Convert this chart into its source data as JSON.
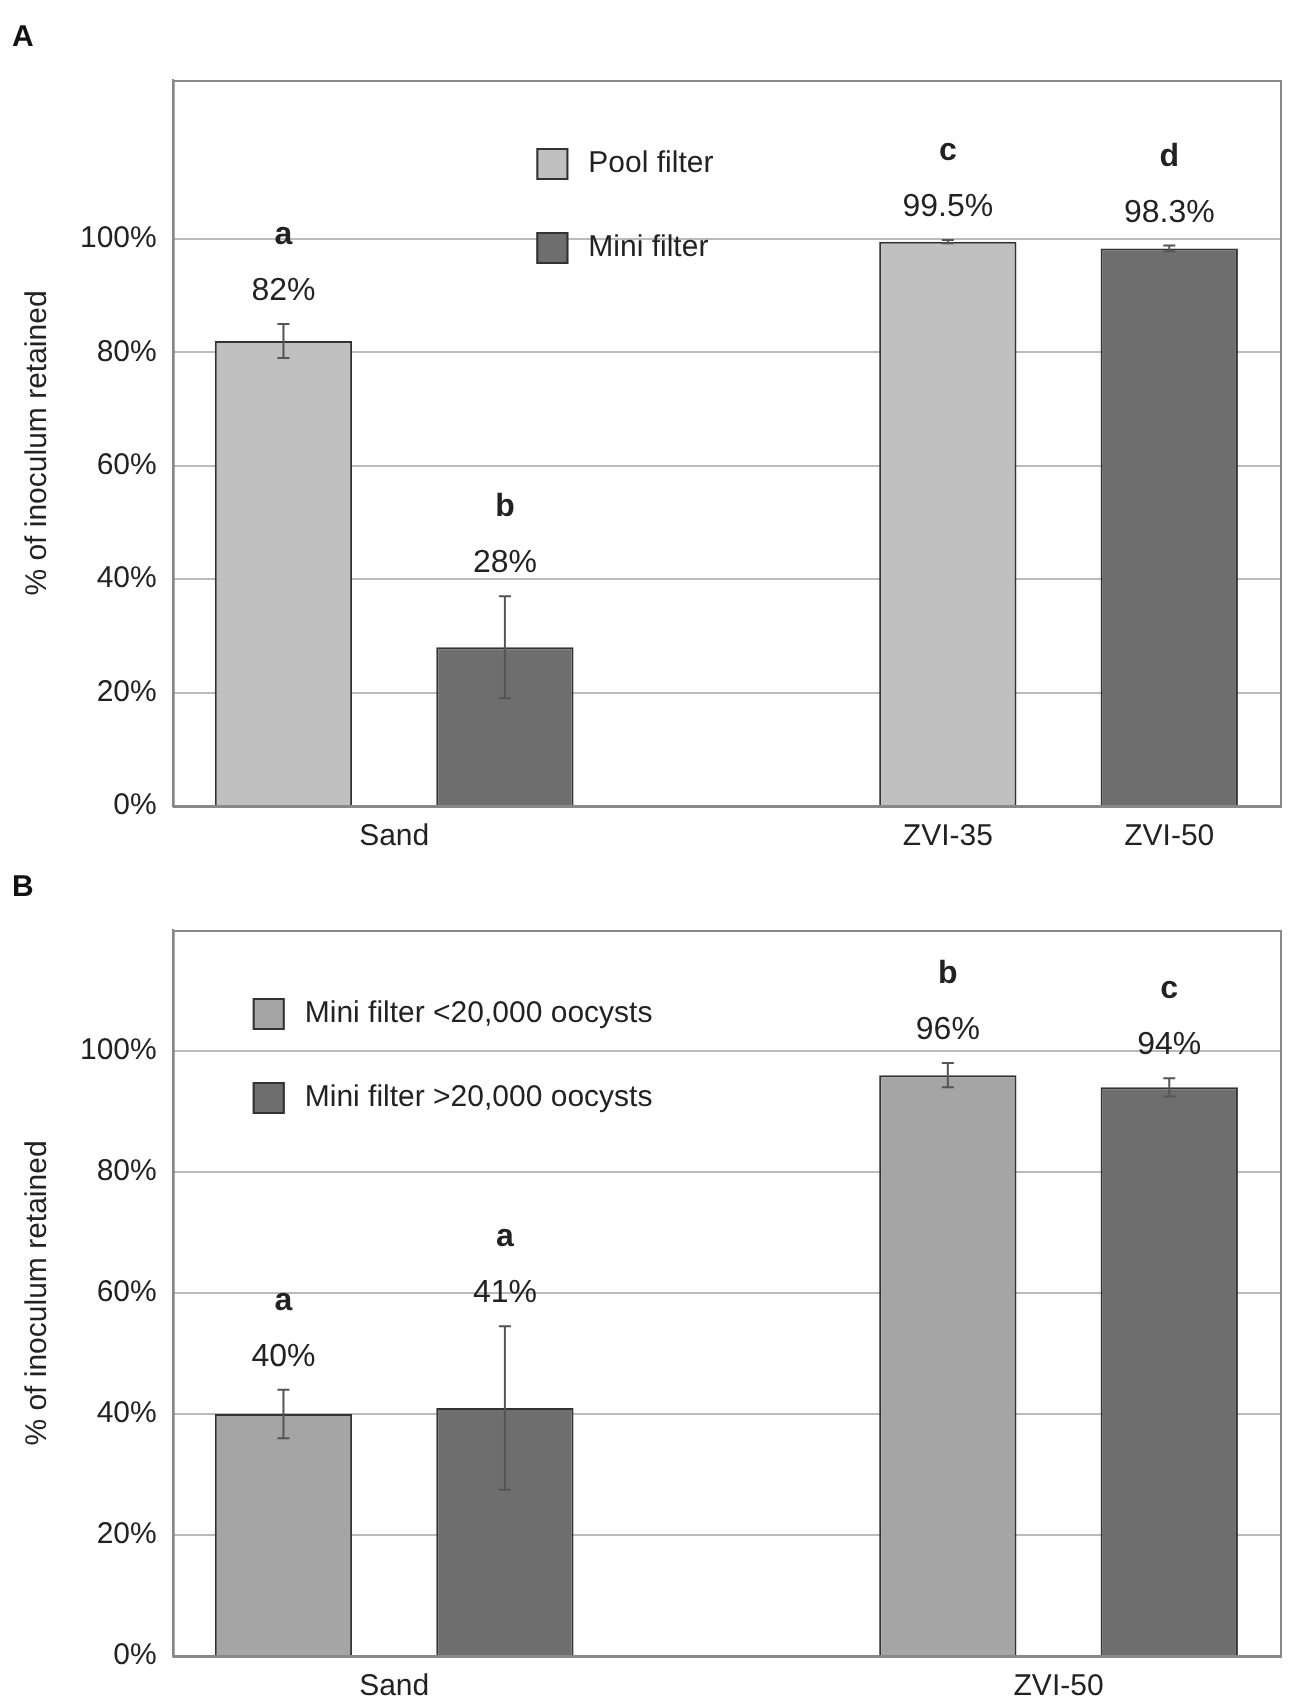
{
  "chart_data": [
    {
      "type": "bar",
      "title": "A",
      "ylabel": "% of inoculum retained",
      "categories": [
        "Sand",
        "ZVI-35",
        "ZVI-50"
      ],
      "series": [
        {
          "name": "Pool filter",
          "color": "#c0c0c0",
          "values": [
            82,
            99.5,
            null
          ],
          "errors": [
            3,
            0.3,
            null
          ],
          "value_labels": [
            "82%",
            "99.5%",
            null
          ]
        },
        {
          "name": "Mini filter",
          "color": "#6e6e6e",
          "values": [
            28,
            null,
            98.3
          ],
          "errors": [
            9,
            null,
            0.5
          ],
          "value_labels": [
            "28%",
            null,
            "98.3%"
          ]
        }
      ],
      "ylim": [
        0,
        128
      ],
      "yticks": [
        {
          "value": 0,
          "label": "0%"
        },
        {
          "value": 20,
          "label": "20%"
        },
        {
          "value": 40,
          "label": "40%"
        },
        {
          "value": 60,
          "label": "60%"
        },
        {
          "value": 80,
          "label": "80%"
        },
        {
          "value": 100,
          "label": "100%"
        }
      ],
      "grid": "y",
      "legend": "top",
      "annotations": [
        "a",
        "b",
        "c",
        "d"
      ]
    },
    {
      "type": "bar",
      "title": "B",
      "ylabel": "% of inoculum retained",
      "categories": [
        "Sand",
        "ZVI-50"
      ],
      "series": [
        {
          "name": "Mini filter <20,000 oocysts",
          "color": "#a5a5a5",
          "values": [
            40,
            96
          ],
          "errors": [
            4,
            2
          ],
          "value_labels": [
            "40%",
            "96%"
          ]
        },
        {
          "name": "Mini filter >20,000 oocysts",
          "color": "#6e6e6e",
          "values": [
            41,
            94
          ],
          "errors": [
            13.5,
            1.5
          ],
          "value_labels": [
            "41%",
            "94%"
          ]
        }
      ],
      "ylim": [
        0,
        120
      ],
      "yticks": [
        {
          "value": 0,
          "label": "0%"
        },
        {
          "value": 20,
          "label": "20%"
        },
        {
          "value": 40,
          "label": "40%"
        },
        {
          "value": 60,
          "label": "60%"
        },
        {
          "value": 80,
          "label": "80%"
        },
        {
          "value": 100,
          "label": "100%"
        }
      ],
      "grid": "y",
      "legend": "top left",
      "annotations": [
        "a",
        "a",
        "b",
        "c"
      ]
    }
  ]
}
